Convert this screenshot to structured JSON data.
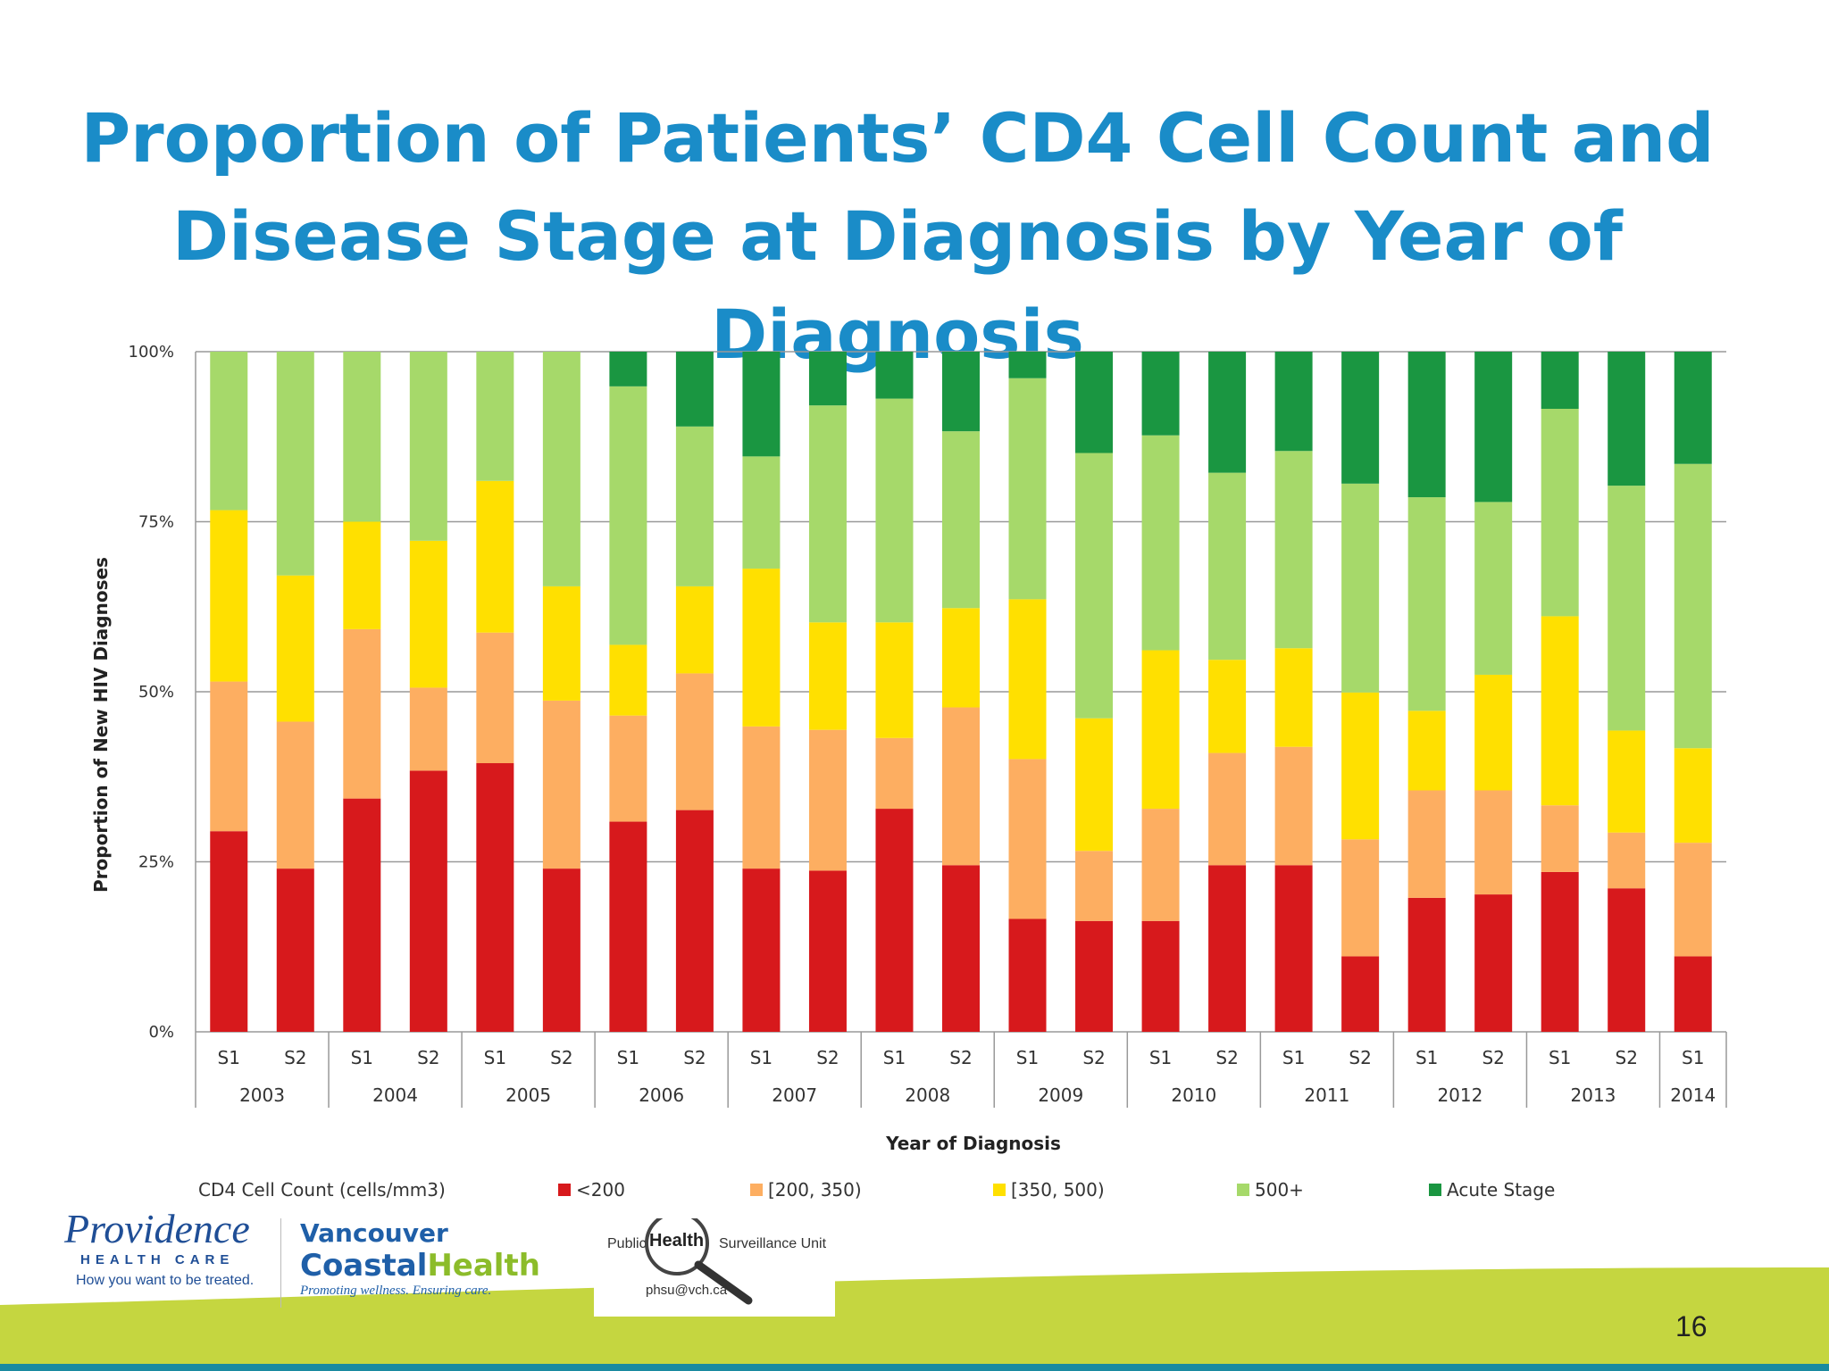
{
  "slide": {
    "title_line1": "Proportion of Patients’ CD4 Cell Count and",
    "title_line2": "Disease Stage at Diagnosis by Year of Diagnosis",
    "page_number": "16"
  },
  "logos": {
    "providence_name": "Providence",
    "providence_sub": "HEALTH CARE",
    "providence_tagline": "How you want to be treated.",
    "vch_line1": "Vancouver",
    "vch_line2a": "Coastal",
    "vch_line2b": "Health",
    "vch_tagline": "Promoting wellness. Ensuring care.",
    "phsu_left": "Public",
    "phsu_mid": "Health",
    "phsu_right": "Surveillance Unit",
    "phsu_email": "phsu@vch.ca"
  },
  "chart_data": {
    "type": "bar",
    "stacked": true,
    "title": "",
    "xlabel": "Year of Diagnosis",
    "ylabel": "Proportion of New HIV Diagnoses",
    "ylim": [
      0,
      100
    ],
    "yticks": [
      "0%",
      "25%",
      "50%",
      "75%",
      "100%"
    ],
    "grid": true,
    "legend_title": "CD4 Cell Count (cells/mm3)",
    "legend_position": "bottom",
    "categories": [
      "S1",
      "S2",
      "S1",
      "S2",
      "S1",
      "S2",
      "S1",
      "S2",
      "S1",
      "S2",
      "S1",
      "S2",
      "S1",
      "S2",
      "S1",
      "S2",
      "S1",
      "S2",
      "S1",
      "S2",
      "S1",
      "S2",
      "S1"
    ],
    "years": [
      {
        "label": "2003",
        "span": 2
      },
      {
        "label": "2004",
        "span": 2
      },
      {
        "label": "2005",
        "span": 2
      },
      {
        "label": "2006",
        "span": 2
      },
      {
        "label": "2007",
        "span": 2
      },
      {
        "label": "2008",
        "span": 2
      },
      {
        "label": "2009",
        "span": 2
      },
      {
        "label": "2010",
        "span": 2
      },
      {
        "label": "2011",
        "span": 2
      },
      {
        "label": "2012",
        "span": 2
      },
      {
        "label": "2013",
        "span": 2
      },
      {
        "label": "2014",
        "span": 1
      }
    ],
    "series": [
      {
        "name": "<200",
        "color": "#d7191c",
        "values": [
          29.5,
          24.0,
          34.3,
          38.4,
          39.5,
          24.0,
          30.9,
          32.6,
          24.0,
          23.7,
          32.8,
          24.5,
          16.6,
          16.3,
          16.3,
          24.5,
          24.5,
          11.1,
          19.7,
          20.2,
          23.5,
          21.1,
          11.1
        ]
      },
      {
        "name": "[200, 350)",
        "color": "#fdae61",
        "values": [
          22.0,
          21.6,
          24.9,
          12.2,
          19.2,
          24.7,
          15.6,
          20.1,
          20.9,
          20.7,
          10.4,
          23.2,
          23.5,
          10.3,
          16.5,
          16.5,
          17.4,
          17.2,
          15.8,
          15.3,
          9.8,
          8.2,
          16.7
        ]
      },
      {
        "name": "[350, 500)",
        "color": "#ffe000",
        "values": [
          25.2,
          21.5,
          15.8,
          21.6,
          22.3,
          16.8,
          10.4,
          12.8,
          23.2,
          15.8,
          17.0,
          14.6,
          23.5,
          19.5,
          23.3,
          13.7,
          14.5,
          21.6,
          11.7,
          17.0,
          27.8,
          15.0,
          13.9
        ]
      },
      {
        "name": "500+",
        "color": "#a6d96a",
        "values": [
          23.3,
          32.9,
          25.0,
          27.8,
          19.0,
          34.5,
          38.0,
          23.5,
          16.5,
          31.9,
          32.9,
          26.0,
          32.5,
          39.0,
          31.6,
          27.5,
          29.0,
          30.7,
          31.4,
          25.4,
          30.5,
          36.0,
          41.8
        ]
      },
      {
        "name": "Acute Stage",
        "color": "#1a9641",
        "values": [
          0,
          0,
          0,
          0,
          0,
          0,
          5.1,
          11.0,
          15.4,
          7.9,
          6.9,
          11.7,
          3.9,
          14.9,
          12.3,
          17.8,
          14.6,
          19.4,
          21.4,
          22.1,
          8.4,
          19.7,
          16.5
        ]
      }
    ]
  }
}
